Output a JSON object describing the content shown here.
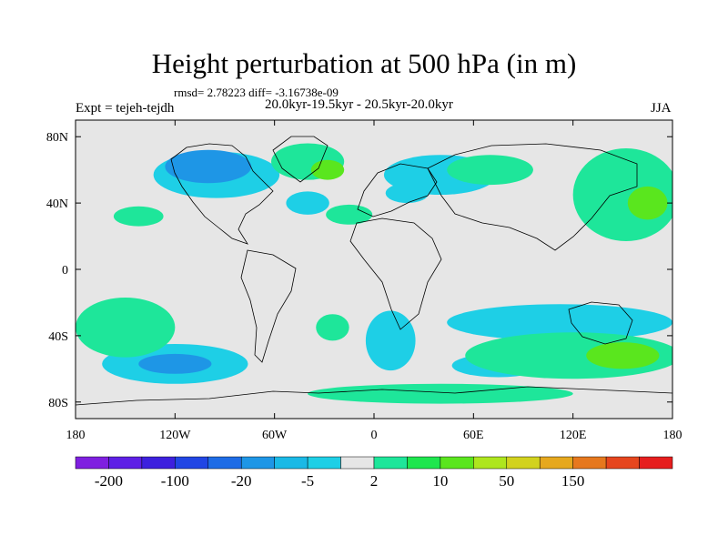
{
  "header": {
    "title": "Height perturbation at 500 hPa (in m)",
    "stats": "rmsd= 2.78223 diff= -3.16738e-09",
    "experiment": "Expt = tejeh-tejdh",
    "period": "20.0kyr-19.5kyr - 20.5kyr-20.0kyr",
    "season": "JJA"
  },
  "chart_data": {
    "type": "heatmap",
    "title": "Height perturbation at 500 hPa (in m)",
    "projection": "cylindrical-equidistant",
    "xlim": [
      -180,
      180
    ],
    "ylim": [
      -90,
      90
    ],
    "xticks": [
      {
        "value": -180,
        "label": "180"
      },
      {
        "value": -120,
        "label": "120W"
      },
      {
        "value": -60,
        "label": "60W"
      },
      {
        "value": 0,
        "label": "0"
      },
      {
        "value": 60,
        "label": "60E"
      },
      {
        "value": 120,
        "label": "120E"
      },
      {
        "value": 180,
        "label": "180"
      }
    ],
    "yticks": [
      {
        "value": 80,
        "label": "80N"
      },
      {
        "value": 40,
        "label": "40N"
      },
      {
        "value": 0,
        "label": "0"
      },
      {
        "value": -40,
        "label": "40S"
      },
      {
        "value": -80,
        "label": "80S"
      }
    ],
    "colorbar": {
      "colors": [
        "#7f1fe0",
        "#5e1fe6",
        "#3d20de",
        "#2146e4",
        "#1e6ce6",
        "#1e96e6",
        "#1ab9e6",
        "#1ecfe6",
        "#e6e6e6",
        "#1ee69a",
        "#1ee64e",
        "#5ae61e",
        "#aee61e",
        "#d2d21e",
        "#e6a81e",
        "#e6781e",
        "#e6461e",
        "#e61e1e"
      ],
      "labels": [
        "-200",
        "-100",
        "-20",
        "-5",
        "2",
        "10",
        "50",
        "150"
      ]
    },
    "regions": [
      {
        "level": -5,
        "lon": -95,
        "lat": 57,
        "rx": 38,
        "ry": 14
      },
      {
        "level": -20,
        "lon": -100,
        "lat": 62,
        "rx": 26,
        "ry": 10
      },
      {
        "level": -5,
        "lon": -40,
        "lat": 40,
        "rx": 13,
        "ry": 7
      },
      {
        "level": -5,
        "lon": 40,
        "lat": 57,
        "rx": 34,
        "ry": 12
      },
      {
        "level": -5,
        "lon": 20,
        "lat": 46,
        "rx": 13,
        "ry": 6
      },
      {
        "level": -5,
        "lon": -120,
        "lat": -57,
        "rx": 44,
        "ry": 12
      },
      {
        "level": -20,
        "lon": -120,
        "lat": -57,
        "rx": 22,
        "ry": 6
      },
      {
        "level": -5,
        "lon": 10,
        "lat": -43,
        "rx": 15,
        "ry": 18
      },
      {
        "level": -5,
        "lon": 112,
        "lat": -32,
        "rx": 68,
        "ry": 11
      },
      {
        "level": -5,
        "lon": 75,
        "lat": -58,
        "rx": 28,
        "ry": 7
      },
      {
        "level": 2,
        "lon": -40,
        "lat": 65,
        "rx": 22,
        "ry": 11
      },
      {
        "level": 10,
        "lon": -28,
        "lat": 60,
        "rx": 10,
        "ry": 6
      },
      {
        "level": 2,
        "lon": 70,
        "lat": 60,
        "rx": 26,
        "ry": 9
      },
      {
        "level": 2,
        "lon": 152,
        "lat": 45,
        "rx": 32,
        "ry": 28
      },
      {
        "level": 10,
        "lon": 165,
        "lat": 40,
        "rx": 12,
        "ry": 10
      },
      {
        "level": 2,
        "lon": -142,
        "lat": 32,
        "rx": 15,
        "ry": 6
      },
      {
        "level": 2,
        "lon": -15,
        "lat": 33,
        "rx": 14,
        "ry": 6
      },
      {
        "level": 2,
        "lon": -150,
        "lat": -35,
        "rx": 30,
        "ry": 18
      },
      {
        "level": 2,
        "lon": 120,
        "lat": -52,
        "rx": 65,
        "ry": 14
      },
      {
        "level": 10,
        "lon": 150,
        "lat": -52,
        "rx": 22,
        "ry": 8
      },
      {
        "level": 2,
        "lon": -25,
        "lat": -35,
        "rx": 10,
        "ry": 8
      },
      {
        "level": 2,
        "lon": 40,
        "lat": -75,
        "rx": 80,
        "ry": 6
      }
    ]
  }
}
